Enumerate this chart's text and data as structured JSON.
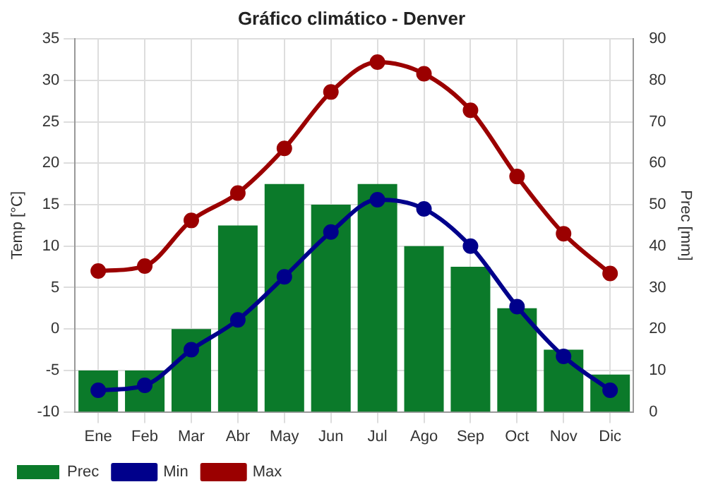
{
  "chart_data": {
    "type": "bar",
    "title": "Gráfico climático - Denver",
    "ylabel": "Temp [°C]",
    "y2label": "Prec [mm]",
    "categories": [
      "Ene",
      "Feb",
      "Mar",
      "Abr",
      "May",
      "Jun",
      "Jul",
      "Ago",
      "Sep",
      "Oct",
      "Nov",
      "Dic"
    ],
    "series": [
      {
        "name": "Prec",
        "axis": "y2",
        "color": "#0b7a2a",
        "values": [
          10,
          10,
          20,
          45,
          55,
          50,
          55,
          40,
          35,
          25,
          15,
          9
        ]
      },
      {
        "name": "Min",
        "type": "line",
        "axis": "y",
        "color": "#00008b",
        "values": [
          -7.4,
          -6.8,
          -2.5,
          1.1,
          6.3,
          11.7,
          15.6,
          14.5,
          10,
          2.7,
          -3.3,
          -7.4
        ]
      },
      {
        "name": "Max",
        "type": "line",
        "axis": "y",
        "color": "#9b0000",
        "values": [
          7,
          7.6,
          13.1,
          16.4,
          21.8,
          28.6,
          32.2,
          30.8,
          26.4,
          18.4,
          11.5,
          6.7
        ]
      }
    ],
    "ylim": [
      -10,
      35
    ],
    "yticks": [
      -10,
      -5,
      0,
      5,
      10,
      15,
      20,
      25,
      30,
      35
    ],
    "y2lim": [
      0,
      90
    ],
    "y2ticks": [
      0,
      10,
      20,
      30,
      40,
      50,
      60,
      70,
      80,
      90
    ],
    "grid": true,
    "legend": "bottom",
    "marker": "circle"
  }
}
